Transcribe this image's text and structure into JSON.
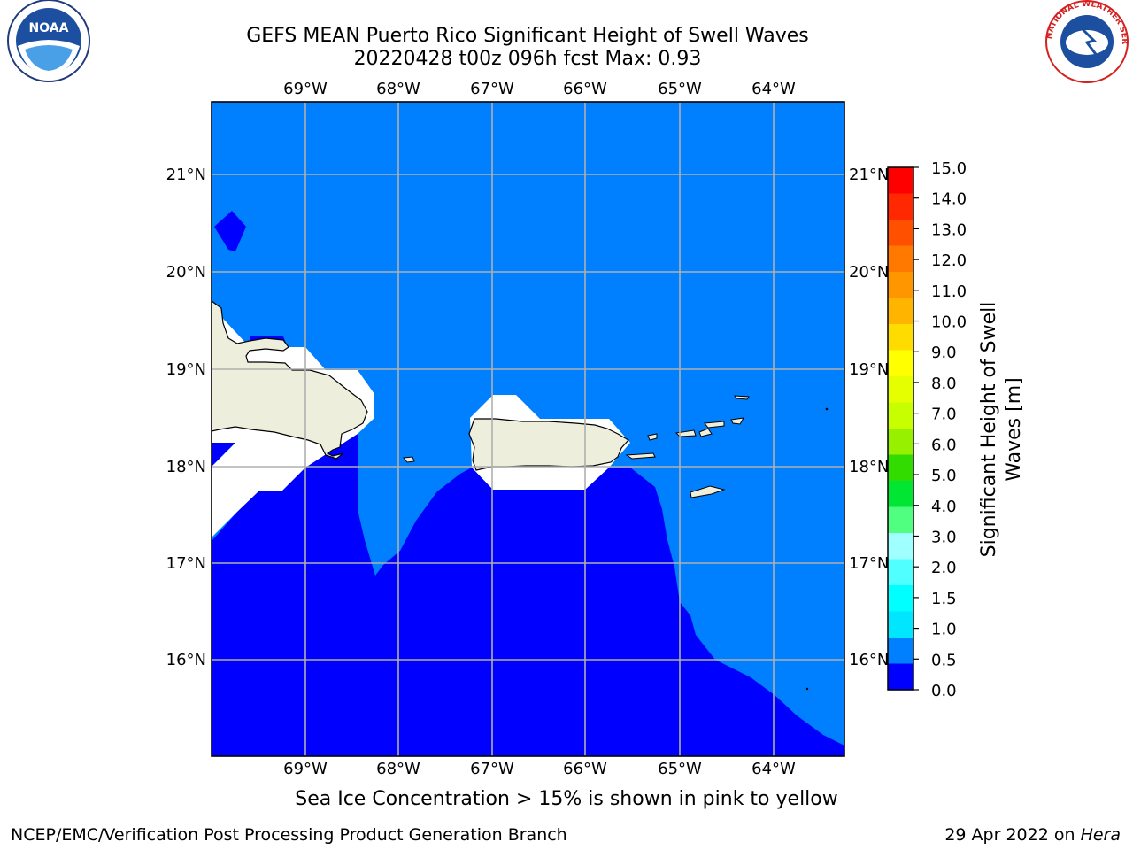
{
  "header": {
    "title_line1": "GEFS MEAN Puerto Rico Significant Height of Swell Waves",
    "title_line2": "20220428 t00z 096h fcst   Max: 0.93"
  },
  "logos": {
    "left": "noara-logo",
    "right": "national-weather-service-logo",
    "right_text": "NATIONAL WEATHER SERVICE"
  },
  "map": {
    "lon_labels": [
      "69°W",
      "68°W",
      "67°W",
      "66°W",
      "65°W",
      "64°W"
    ],
    "lat_labels": [
      "21°N",
      "20°N",
      "19°N",
      "18°N",
      "17°N",
      "16°N"
    ],
    "colors": {
      "ocean_light": "#0080ff",
      "ocean_dark": "#0000ff",
      "land": "#eeeedd",
      "mask": "#ffffff",
      "grid": "#b0b0b0"
    }
  },
  "colorbar": {
    "label_line1": "Significant Height of Swell",
    "label_line2": "Waves [m]",
    "ticks": [
      "15.0",
      "14.0",
      "13.0",
      "12.0",
      "11.0",
      "10.0",
      "9.0",
      "8.0",
      "7.0",
      "6.0",
      "5.0",
      "4.0",
      "3.0",
      "2.0",
      "1.5",
      "1.0",
      "0.5",
      "0.0"
    ],
    "colors": [
      "#ff0000",
      "#ff2800",
      "#ff5000",
      "#ff7800",
      "#ff9600",
      "#ffb400",
      "#ffdc00",
      "#ffff00",
      "#e6ff00",
      "#c8ff00",
      "#96f000",
      "#32dc00",
      "#00e632",
      "#50ff80",
      "#a0ffff",
      "#50ffff",
      "#00ffff",
      "#00e6ff",
      "#0080ff",
      "#0000ff"
    ]
  },
  "note": "Sea Ice Concentration > 15% is shown in pink to yellow",
  "footer": {
    "left": "NCEP/EMC/Verification Post Processing Product Generation Branch",
    "right_prefix": "29 Apr 2022 on ",
    "right_host": "Hera"
  }
}
